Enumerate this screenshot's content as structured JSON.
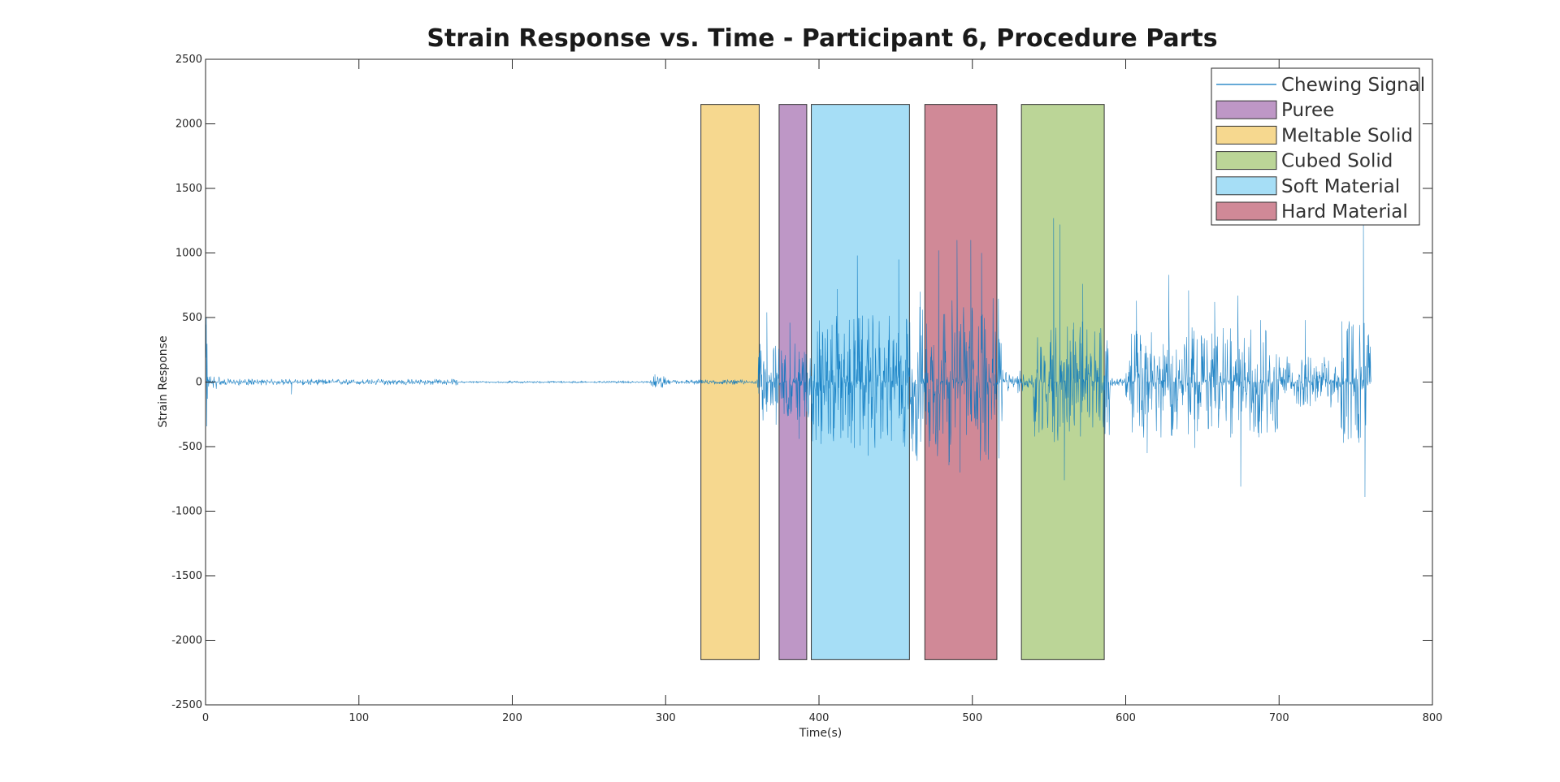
{
  "chart_data": {
    "type": "line",
    "title": "Strain Response vs. Time - Participant 6, Procedure Parts",
    "xlabel": "Time(s)",
    "ylabel": "Strain Response",
    "xlim": [
      0,
      800
    ],
    "ylim": [
      -2500,
      2500
    ],
    "xticks": [
      0,
      100,
      200,
      300,
      400,
      500,
      600,
      700,
      800
    ],
    "yticks": [
      2500,
      2000,
      1500,
      1000,
      500,
      0,
      -500,
      -1000,
      -1500,
      -2000,
      -2500
    ],
    "grid": false,
    "legend_position": "top-right",
    "series": [
      {
        "name": "Chewing Signal",
        "color": "#0072BD",
        "t_start": 0,
        "t_end": 760,
        "envelope": [
          {
            "t0": 0,
            "t1": 2,
            "amp": 450
          },
          {
            "t0": 2,
            "t1": 10,
            "amp": 60
          },
          {
            "t0": 10,
            "t1": 165,
            "amp": 25
          },
          {
            "t0": 165,
            "t1": 290,
            "amp": 8
          },
          {
            "t0": 290,
            "t1": 300,
            "amp": 45
          },
          {
            "t0": 300,
            "t1": 360,
            "amp": 20
          },
          {
            "t0": 360,
            "t1": 395,
            "amp": 300
          },
          {
            "t0": 395,
            "t1": 460,
            "amp": 520
          },
          {
            "t0": 460,
            "t1": 520,
            "amp": 650
          },
          {
            "t0": 520,
            "t1": 540,
            "amp": 90
          },
          {
            "t0": 540,
            "t1": 590,
            "amp": 480
          },
          {
            "t0": 590,
            "t1": 600,
            "amp": 30
          },
          {
            "t0": 600,
            "t1": 700,
            "amp": 430
          },
          {
            "t0": 700,
            "t1": 740,
            "amp": 200
          },
          {
            "t0": 740,
            "t1": 760,
            "amp": 500
          }
        ],
        "spikes": [
          {
            "t": 0.5,
            "y": 500
          },
          {
            "t": 1.2,
            "y": -130
          },
          {
            "t": 56,
            "y": -95
          },
          {
            "t": 293,
            "y": 60
          },
          {
            "t": 366,
            "y": 540
          },
          {
            "t": 372,
            "y": -330
          },
          {
            "t": 381,
            "y": 460
          },
          {
            "t": 387,
            "y": -440
          },
          {
            "t": 412,
            "y": 720
          },
          {
            "t": 423,
            "y": -510
          },
          {
            "t": 425,
            "y": 980
          },
          {
            "t": 432,
            "y": -570
          },
          {
            "t": 452,
            "y": 950
          },
          {
            "t": 455,
            "y": -470
          },
          {
            "t": 466,
            "y": 700
          },
          {
            "t": 478,
            "y": 1020
          },
          {
            "t": 485,
            "y": -620
          },
          {
            "t": 490,
            "y": 1100
          },
          {
            "t": 492,
            "y": -700
          },
          {
            "t": 499,
            "y": 1100
          },
          {
            "t": 506,
            "y": 1000
          },
          {
            "t": 515,
            "y": 390
          },
          {
            "t": 553,
            "y": 1270
          },
          {
            "t": 557,
            "y": 1220
          },
          {
            "t": 560,
            "y": -760
          },
          {
            "t": 566,
            "y": 460
          },
          {
            "t": 572,
            "y": 760
          },
          {
            "t": 607,
            "y": 630
          },
          {
            "t": 614,
            "y": -550
          },
          {
            "t": 628,
            "y": 830
          },
          {
            "t": 641,
            "y": 710
          },
          {
            "t": 645,
            "y": -510
          },
          {
            "t": 658,
            "y": 620
          },
          {
            "t": 673,
            "y": 670
          },
          {
            "t": 675,
            "y": -810
          },
          {
            "t": 688,
            "y": 480
          },
          {
            "t": 717,
            "y": 480
          },
          {
            "t": 741,
            "y": 470
          },
          {
            "t": 742,
            "y": -470
          },
          {
            "t": 753,
            "y": -430
          },
          {
            "t": 755,
            "y": 1220
          },
          {
            "t": 756,
            "y": -890
          },
          {
            "t": 758,
            "y": 360
          }
        ]
      }
    ],
    "regions": [
      {
        "name": "Meltable Solid",
        "x0": 323,
        "x1": 361,
        "y0": -2150,
        "y1": 2150,
        "color": "#EDB120"
      },
      {
        "name": "Puree",
        "x0": 374,
        "x1": 392,
        "y0": -2150,
        "y1": 2150,
        "color": "#7E2F8E"
      },
      {
        "name": "Soft Material",
        "x0": 395,
        "x1": 459,
        "y0": -2150,
        "y1": 2150,
        "color": "#4DBEEE"
      },
      {
        "name": "Hard Material",
        "x0": 469,
        "x1": 516,
        "y0": -2150,
        "y1": 2150,
        "color": "#A2142F"
      },
      {
        "name": "Cubed Solid",
        "x0": 532,
        "x1": 586,
        "y0": -2150,
        "y1": 2150,
        "color": "#77AC30"
      }
    ],
    "legend": [
      {
        "label": "Chewing Signal",
        "kind": "line",
        "color": "#0072BD"
      },
      {
        "label": "Puree",
        "kind": "patch",
        "color": "#7E2F8E"
      },
      {
        "label": "Meltable Solid",
        "kind": "patch",
        "color": "#EDB120"
      },
      {
        "label": "Cubed Solid",
        "kind": "patch",
        "color": "#77AC30"
      },
      {
        "label": "Soft Material",
        "kind": "patch",
        "color": "#4DBEEE"
      },
      {
        "label": "Hard Material",
        "kind": "patch",
        "color": "#A2142F"
      }
    ]
  }
}
